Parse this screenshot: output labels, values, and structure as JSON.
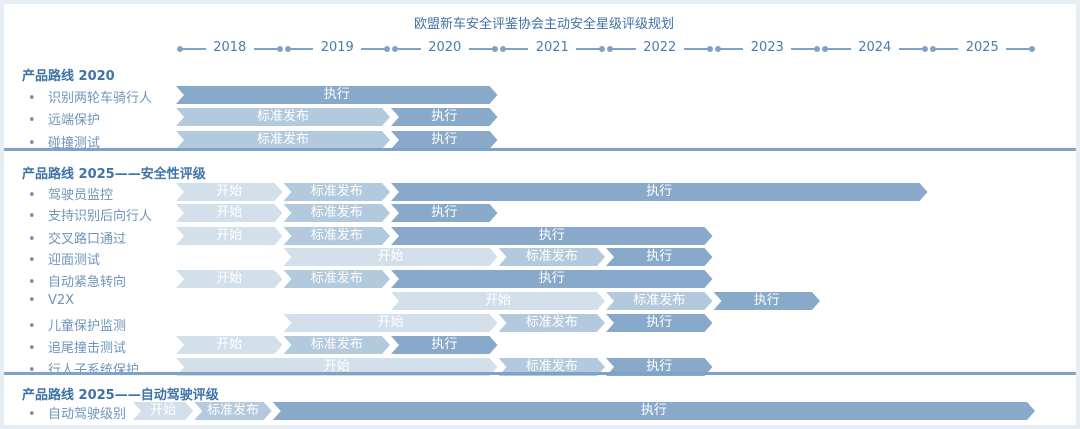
{
  "title": "欧盟新车安全评鉴协会主动安全星级评级规划",
  "years": [
    "2018",
    "2019",
    "2020",
    "2021",
    "2022",
    "2023",
    "2024",
    "2025"
  ],
  "phase_colors": {
    "开始": "#d3dfea",
    "标准发布": "#b3c9dd",
    "执行": "#88a9c9"
  },
  "sections": [
    {
      "title": "产品路线 2020",
      "rows": [
        {
          "label": "识别两轮车骑行人",
          "segments": [
            {
              "phase": "执行",
              "start": 2018,
              "end": 2021
            }
          ]
        },
        {
          "label": "远端保护",
          "segments": [
            {
              "phase": "标准发布",
              "start": 2018,
              "end": 2020
            },
            {
              "phase": "执行",
              "start": 2020,
              "end": 2021
            }
          ]
        },
        {
          "label": "碰撞测试",
          "segments": [
            {
              "phase": "标准发布",
              "start": 2018,
              "end": 2020
            },
            {
              "phase": "执行",
              "start": 2020,
              "end": 2021
            }
          ]
        }
      ]
    },
    {
      "title": "产品路线 2025——安全性评级",
      "rows": [
        {
          "label": "驾驶员监控",
          "segments": [
            {
              "phase": "开始",
              "start": 2018,
              "end": 2019
            },
            {
              "phase": "标准发布",
              "start": 2019,
              "end": 2020
            },
            {
              "phase": "执行",
              "start": 2020,
              "end": 2025
            }
          ]
        },
        {
          "label": "支持识别后向行人",
          "segments": [
            {
              "phase": "开始",
              "start": 2018,
              "end": 2019
            },
            {
              "phase": "标准发布",
              "start": 2019,
              "end": 2020
            },
            {
              "phase": "执行",
              "start": 2020,
              "end": 2021
            }
          ]
        },
        {
          "label": "交叉路口通过",
          "segments": [
            {
              "phase": "开始",
              "start": 2018,
              "end": 2019
            },
            {
              "phase": "标准发布",
              "start": 2019,
              "end": 2020
            },
            {
              "phase": "执行",
              "start": 2020,
              "end": 2023
            }
          ]
        },
        {
          "label": "迎面测试",
          "segments": [
            {
              "phase": "开始",
              "start": 2019,
              "end": 2021
            },
            {
              "phase": "标准发布",
              "start": 2021,
              "end": 2022
            },
            {
              "phase": "执行",
              "start": 2022,
              "end": 2023
            }
          ]
        },
        {
          "label": "自动紧急转向",
          "segments": [
            {
              "phase": "开始",
              "start": 2018,
              "end": 2019
            },
            {
              "phase": "标准发布",
              "start": 2019,
              "end": 2020
            },
            {
              "phase": "执行",
              "start": 2020,
              "end": 2023
            }
          ]
        },
        {
          "label": "V2X",
          "segments": [
            {
              "phase": "开始",
              "start": 2020,
              "end": 2022
            },
            {
              "phase": "标准发布",
              "start": 2022,
              "end": 2023
            },
            {
              "phase": "执行",
              "start": 2023,
              "end": 2024
            }
          ]
        },
        {
          "label": "儿童保护监测",
          "segments": [
            {
              "phase": "开始",
              "start": 2019,
              "end": 2021
            },
            {
              "phase": "标准发布",
              "start": 2021,
              "end": 2022
            },
            {
              "phase": "执行",
              "start": 2022,
              "end": 2023
            }
          ]
        },
        {
          "label": "追尾撞击测试",
          "segments": [
            {
              "phase": "开始",
              "start": 2018,
              "end": 2019
            },
            {
              "phase": "标准发布",
              "start": 2019,
              "end": 2020
            },
            {
              "phase": "执行",
              "start": 2020,
              "end": 2021
            }
          ]
        },
        {
          "label": "行人子系统保护",
          "segments": [
            {
              "phase": "开始",
              "start": 2018,
              "end": 2021
            },
            {
              "phase": "标准发布",
              "start": 2021,
              "end": 2022
            },
            {
              "phase": "执行",
              "start": 2022,
              "end": 2023
            }
          ]
        }
      ]
    },
    {
      "title": "产品路线 2025——自动驾驶评级",
      "rows": [
        {
          "label": "自动驾驶级别",
          "segments": [
            {
              "phase": "开始",
              "start": 2017.6,
              "end": 2018.17
            },
            {
              "phase": "标准发布",
              "start": 2018.17,
              "end": 2018.9
            },
            {
              "phase": "执行",
              "start": 2018.9,
              "end": 2026
            }
          ]
        }
      ]
    }
  ]
}
